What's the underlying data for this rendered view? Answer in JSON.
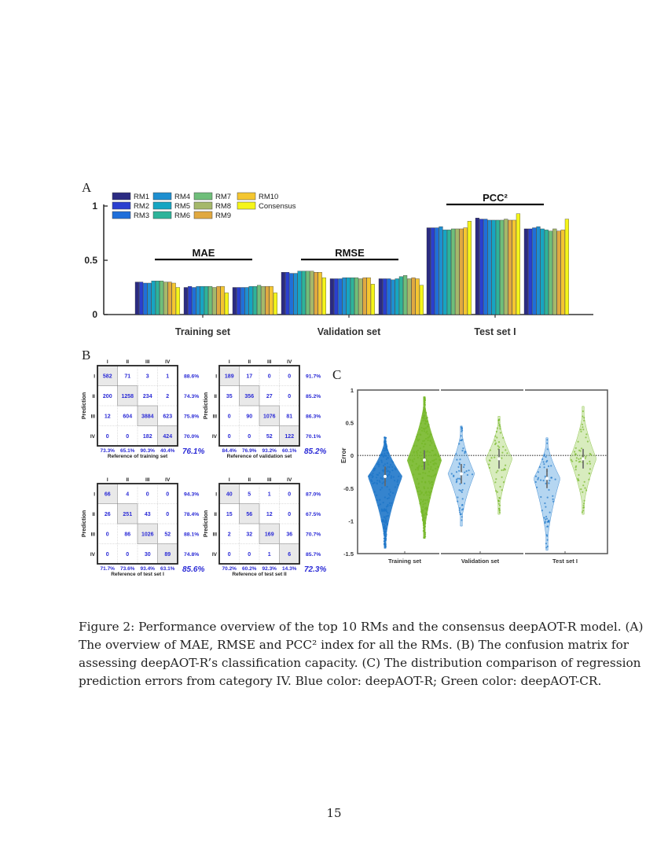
{
  "panels": {
    "A": {
      "label": "A"
    },
    "B": {
      "label": "B"
    },
    "C": {
      "label": "C"
    }
  },
  "chart_data": [
    {
      "id": "A",
      "type": "bar",
      "title": "",
      "xlabel": "",
      "ylabel": "",
      "ylim": [
        0,
        1
      ],
      "yticks": [
        "0",
        "0.5",
        "1"
      ],
      "categories": [
        "Training set",
        "Validation set",
        "Test set I"
      ],
      "group_annotations": [
        "MAE",
        "RMSE",
        "PCC²"
      ],
      "legend": [
        "RM1",
        "RM2",
        "RM3",
        "RM4",
        "RM5",
        "RM6",
        "RM7",
        "RM8",
        "RM9",
        "RM10",
        "Consensus"
      ],
      "legend_position": "upper left",
      "colors": [
        "#2b2b82",
        "#2a3fcf",
        "#1f6fd9",
        "#1e8fd0",
        "#16a5c2",
        "#2eb39a",
        "#6fbe7a",
        "#a5b86a",
        "#e0a840",
        "#f4c630",
        "#f5f519"
      ],
      "metrics": [
        {
          "name": "MAE",
          "series": [
            {
              "name": "Training set",
              "values": [
                0.3,
                0.3,
                0.29,
                0.29,
                0.31,
                0.31,
                0.31,
                0.3,
                0.3,
                0.29,
                0.25
              ]
            },
            {
              "name": "Validation set",
              "values": [
                0.25,
                0.26,
                0.25,
                0.26,
                0.26,
                0.26,
                0.26,
                0.25,
                0.26,
                0.26,
                0.2
              ]
            },
            {
              "name": "Test set I",
              "values": [
                0.25,
                0.25,
                0.25,
                0.25,
                0.26,
                0.26,
                0.27,
                0.26,
                0.26,
                0.26,
                0.2
              ]
            }
          ]
        },
        {
          "name": "RMSE",
          "series": [
            {
              "name": "Training set",
              "values": [
                0.39,
                0.39,
                0.38,
                0.38,
                0.4,
                0.4,
                0.4,
                0.4,
                0.39,
                0.39,
                0.34
              ]
            },
            {
              "name": "Validation set",
              "values": [
                0.33,
                0.33,
                0.33,
                0.34,
                0.34,
                0.34,
                0.34,
                0.33,
                0.34,
                0.34,
                0.28
              ]
            },
            {
              "name": "Test set I",
              "values": [
                0.33,
                0.33,
                0.33,
                0.32,
                0.33,
                0.35,
                0.36,
                0.33,
                0.34,
                0.33,
                0.27
              ]
            }
          ]
        },
        {
          "name": "PCC²",
          "series": [
            {
              "name": "Training set",
              "values": [
                0.8,
                0.8,
                0.8,
                0.81,
                0.78,
                0.78,
                0.79,
                0.79,
                0.79,
                0.8,
                0.86
              ]
            },
            {
              "name": "Validation set",
              "values": [
                0.89,
                0.88,
                0.88,
                0.87,
                0.87,
                0.87,
                0.87,
                0.88,
                0.87,
                0.87,
                0.93
              ]
            },
            {
              "name": "Test set I",
              "values": [
                0.79,
                0.79,
                0.8,
                0.81,
                0.79,
                0.78,
                0.77,
                0.79,
                0.77,
                0.78,
                0.88
              ]
            }
          ]
        }
      ]
    },
    {
      "id": "B",
      "type": "table",
      "title": "Confusion matrices",
      "row_axis_label": "Prediction",
      "class_labels": [
        "I",
        "II",
        "III",
        "IV"
      ],
      "matrices": [
        {
          "xlabel": "Reference of training set",
          "cells": [
            [
              582,
              71,
              3,
              1
            ],
            [
              200,
              1258,
              234,
              2
            ],
            [
              12,
              604,
              3884,
              623
            ],
            [
              0,
              0,
              182,
              424
            ]
          ],
          "row_pct": [
            "88.6%",
            "74.3%",
            "75.8%",
            "70.0%"
          ],
          "col_pct": [
            "73.3%",
            "65.1%",
            "90.3%",
            "40.4%"
          ],
          "overall": "76.1%"
        },
        {
          "xlabel": "Reference of validation set",
          "cells": [
            [
              189,
              17,
              0,
              0
            ],
            [
              35,
              356,
              27,
              0
            ],
            [
              0,
              90,
              1076,
              81
            ],
            [
              0,
              0,
              52,
              122
            ]
          ],
          "row_pct": [
            "91.7%",
            "85.2%",
            "86.3%",
            "70.1%"
          ],
          "col_pct": [
            "84.4%",
            "76.9%",
            "93.2%",
            "60.1%"
          ],
          "overall": "85.2%"
        },
        {
          "xlabel": "Reference of test set I",
          "cells": [
            [
              66,
              4,
              0,
              0
            ],
            [
              26,
              251,
              43,
              0
            ],
            [
              0,
              86,
              1026,
              52
            ],
            [
              0,
              0,
              30,
              89
            ]
          ],
          "row_pct": [
            "94.3%",
            "78.4%",
            "88.1%",
            "74.8%"
          ],
          "col_pct": [
            "71.7%",
            "73.6%",
            "93.4%",
            "63.1%"
          ],
          "overall": "85.6%"
        },
        {
          "xlabel": "Reference of test set II",
          "cells": [
            [
              40,
              5,
              1,
              0
            ],
            [
              15,
              56,
              12,
              0
            ],
            [
              2,
              32,
              169,
              36
            ],
            [
              0,
              0,
              1,
              6
            ]
          ],
          "row_pct": [
            "87.0%",
            "67.5%",
            "70.7%",
            "85.7%"
          ],
          "col_pct": [
            "70.2%",
            "60.2%",
            "92.3%",
            "14.3%"
          ],
          "overall": "72.3%"
        }
      ]
    },
    {
      "id": "C",
      "type": "scatter",
      "subtype": "violin",
      "title": "",
      "xlabel": "",
      "ylabel": "Error",
      "ylim": [
        -1.5,
        1
      ],
      "yticks": [
        "-1.5",
        "-1",
        "-0.5",
        "0",
        "0.5",
        "1"
      ],
      "categories": [
        "Training set",
        "Validation set",
        "Test set I"
      ],
      "reference_line": 0,
      "series": [
        {
          "name": "deepAOT-R",
          "color": "#1f77c9",
          "median": [
            -0.32,
            -0.28,
            -0.35
          ],
          "min": [
            -1.42,
            -1.08,
            -1.45
          ],
          "max": [
            0.28,
            0.45,
            0.27
          ]
        },
        {
          "name": "deepAOT-CR",
          "color": "#77b82a",
          "median": [
            -0.07,
            -0.05,
            -0.05
          ],
          "min": [
            -1.27,
            -0.9,
            -0.9
          ],
          "max": [
            0.9,
            0.6,
            0.75
          ]
        }
      ]
    }
  ],
  "caption": {
    "lines": [
      "Figure 2:  Performance overview of the top 10 RMs and the consensus deepAOT-R model.  (A)",
      "The overview of MAE, RMSE and PCC² index for all the RMs.  (B) The confusion matrix for",
      "assessing deepAOT-R’s classification capacity.  (C) The distribution comparison of regression",
      "prediction errors from category IV. Blue color:  deepAOT-R; Green color:  deepAOT-CR."
    ]
  },
  "page_number": "15"
}
